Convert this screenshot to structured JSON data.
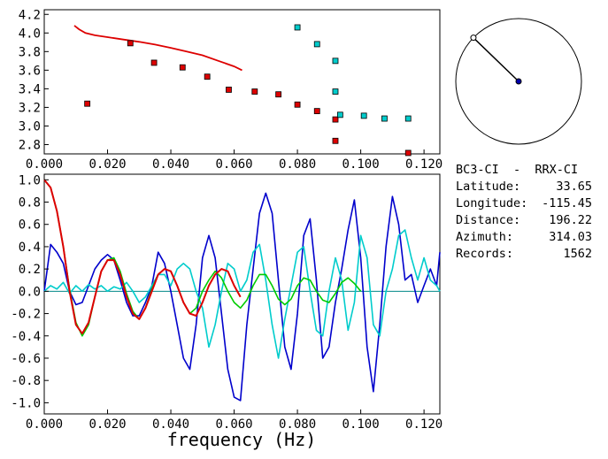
{
  "station": {
    "title": "BC3-CI  -  RRX-CI",
    "fields": [
      {
        "label": "Latitude:",
        "value": "33.65"
      },
      {
        "label": "Longitude:",
        "value": "-115.45"
      },
      {
        "label": "Distance:",
        "value": "196.22"
      },
      {
        "label": "Azimuth:",
        "value": "314.03"
      },
      {
        "label": "Records:",
        "value": "1562"
      }
    ]
  },
  "colors": {
    "red": "#dd0000",
    "cyan": "#00cccc",
    "blue": "#0000cc",
    "green": "#00cc00",
    "zeroline": "#008888",
    "marker_edge": "#000000"
  },
  "chart_data": [
    {
      "type": "scatter",
      "xlabel": "",
      "ylabel": "",
      "xlim": [
        0.0,
        0.125
      ],
      "ylim": [
        2.7,
        4.25
      ],
      "xticks": [
        "0.000",
        "0.020",
        "0.040",
        "0.060",
        "0.080",
        "0.100",
        "0.120"
      ],
      "yticks": [
        "2.8",
        "3.0",
        "3.2",
        "3.4",
        "3.6",
        "3.8",
        "4.0",
        "4.2"
      ],
      "grid": false,
      "series": [
        {
          "color": "red",
          "kind": "line",
          "x": [
            0.0095,
            0.011,
            0.013,
            0.016,
            0.02,
            0.025,
            0.03,
            0.035,
            0.04,
            0.045,
            0.05,
            0.055,
            0.06,
            0.0625
          ],
          "y": [
            4.08,
            4.04,
            4.0,
            3.975,
            3.955,
            3.93,
            3.905,
            3.875,
            3.84,
            3.8,
            3.76,
            3.7,
            3.64,
            3.6
          ]
        },
        {
          "color": "red",
          "kind": "markers",
          "x": [
            0.0136,
            0.0272,
            0.0347,
            0.0437,
            0.0515,
            0.0583,
            0.0665,
            0.074,
            0.08,
            0.0862,
            0.092,
            0.092,
            0.115
          ],
          "y": [
            3.24,
            3.89,
            3.68,
            3.63,
            3.53,
            3.39,
            3.37,
            3.34,
            3.23,
            3.16,
            3.07,
            2.84,
            2.71
          ]
        },
        {
          "color": "cyan",
          "kind": "markers",
          "x": [
            0.08,
            0.0862,
            0.092,
            0.092,
            0.0935,
            0.101,
            0.1075,
            0.115
          ],
          "y": [
            4.06,
            3.88,
            3.7,
            3.37,
            3.12,
            3.11,
            3.08,
            3.08
          ]
        }
      ]
    },
    {
      "type": "line",
      "xlabel": "frequency (Hz)",
      "ylabel": "",
      "xlim": [
        0.0,
        0.125
      ],
      "ylim": [
        -1.1,
        1.05
      ],
      "xticks": [
        "0.000",
        "0.020",
        "0.040",
        "0.060",
        "0.080",
        "0.100",
        "0.120"
      ],
      "yticks": [
        "-1.0",
        "-0.8",
        "-0.6",
        "-0.4",
        "-0.2",
        "0.0",
        "0.2",
        "0.4",
        "0.6",
        "0.8",
        "1.0"
      ],
      "grid": false,
      "series": [
        {
          "color": "blue",
          "x": [
            0.0,
            0.002,
            0.004,
            0.006,
            0.008,
            0.01,
            0.012,
            0.014,
            0.016,
            0.018,
            0.02,
            0.022,
            0.024,
            0.026,
            0.028,
            0.03,
            0.032,
            0.034,
            0.036,
            0.038,
            0.04,
            0.042,
            0.044,
            0.046,
            0.048,
            0.05,
            0.052,
            0.054,
            0.056,
            0.058,
            0.06,
            0.062,
            0.064,
            0.066,
            0.068,
            0.07,
            0.072,
            0.074,
            0.076,
            0.078,
            0.08,
            0.082,
            0.084,
            0.086,
            0.088,
            0.09,
            0.092,
            0.094,
            0.096,
            0.098,
            0.1,
            0.102,
            0.104,
            0.106,
            0.108,
            0.11,
            0.112,
            0.114,
            0.116,
            0.118,
            0.12,
            0.122,
            0.124,
            0.125
          ],
          "y": [
            0.0,
            0.42,
            0.35,
            0.25,
            0.0,
            -0.12,
            -0.1,
            0.05,
            0.2,
            0.28,
            0.33,
            0.28,
            0.1,
            -0.1,
            -0.22,
            -0.22,
            -0.1,
            0.05,
            0.35,
            0.25,
            0.0,
            -0.3,
            -0.6,
            -0.7,
            -0.3,
            0.3,
            0.5,
            0.3,
            -0.2,
            -0.7,
            -0.95,
            -0.98,
            -0.3,
            0.2,
            0.7,
            0.88,
            0.7,
            0.1,
            -0.5,
            -0.7,
            -0.2,
            0.5,
            0.65,
            0.1,
            -0.6,
            -0.5,
            -0.1,
            0.2,
            0.55,
            0.82,
            0.3,
            -0.5,
            -0.9,
            -0.3,
            0.4,
            0.85,
            0.6,
            0.1,
            0.15,
            -0.1,
            0.05,
            0.2,
            0.05,
            0.35
          ]
        },
        {
          "color": "cyan",
          "x": [
            0.0,
            0.002,
            0.004,
            0.006,
            0.008,
            0.01,
            0.012,
            0.014,
            0.016,
            0.018,
            0.02,
            0.022,
            0.024,
            0.026,
            0.028,
            0.03,
            0.032,
            0.034,
            0.036,
            0.038,
            0.04,
            0.042,
            0.044,
            0.046,
            0.048,
            0.05,
            0.052,
            0.054,
            0.056,
            0.058,
            0.06,
            0.062,
            0.064,
            0.066,
            0.068,
            0.07,
            0.072,
            0.074,
            0.076,
            0.078,
            0.08,
            0.082,
            0.084,
            0.086,
            0.088,
            0.09,
            0.092,
            0.094,
            0.096,
            0.098,
            0.1,
            0.102,
            0.104,
            0.106,
            0.108,
            0.11,
            0.112,
            0.114,
            0.116,
            0.118,
            0.12,
            0.122,
            0.124,
            0.125
          ],
          "y": [
            0.0,
            0.05,
            0.02,
            0.08,
            -0.02,
            0.05,
            0.0,
            0.06,
            0.02,
            0.05,
            0.0,
            0.04,
            0.02,
            0.08,
            0.0,
            -0.1,
            -0.05,
            0.05,
            0.15,
            0.15,
            0.05,
            0.2,
            0.25,
            0.2,
            0.0,
            -0.15,
            -0.5,
            -0.3,
            0.0,
            0.25,
            0.2,
            0.0,
            0.1,
            0.35,
            0.42,
            0.1,
            -0.3,
            -0.6,
            -0.25,
            0.05,
            0.35,
            0.4,
            0.0,
            -0.35,
            -0.4,
            0.0,
            0.3,
            0.1,
            -0.35,
            -0.1,
            0.5,
            0.3,
            -0.3,
            -0.4,
            0.0,
            0.2,
            0.5,
            0.55,
            0.3,
            0.1,
            0.3,
            0.1,
            0.05,
            0.0
          ]
        },
        {
          "color": "green",
          "x": [
            0.0,
            0.002,
            0.004,
            0.006,
            0.008,
            0.01,
            0.012,
            0.014,
            0.016,
            0.018,
            0.02,
            0.022,
            0.024,
            0.026,
            0.028,
            0.03,
            0.032,
            0.034,
            0.036,
            0.038,
            0.04,
            0.042,
            0.044,
            0.046,
            0.048,
            0.05,
            0.052,
            0.054,
            0.056,
            0.058,
            0.06,
            0.062,
            0.064,
            0.066,
            0.068,
            0.07,
            0.072,
            0.074,
            0.076,
            0.078,
            0.08,
            0.082,
            0.084,
            0.086,
            0.088,
            0.09,
            0.092,
            0.094,
            0.096,
            0.098,
            0.1
          ],
          "y": [
            1.0,
            0.93,
            0.72,
            0.4,
            0.02,
            -0.28,
            -0.4,
            -0.3,
            -0.05,
            0.18,
            0.28,
            0.3,
            0.18,
            -0.02,
            -0.18,
            -0.25,
            -0.15,
            0.02,
            0.15,
            0.2,
            0.18,
            0.05,
            -0.1,
            -0.2,
            -0.15,
            0.0,
            0.1,
            0.18,
            0.12,
            0.0,
            -0.1,
            -0.15,
            -0.08,
            0.05,
            0.15,
            0.15,
            0.05,
            -0.07,
            -0.12,
            -0.07,
            0.05,
            0.12,
            0.1,
            0.0,
            -0.08,
            -0.1,
            -0.02,
            0.08,
            0.12,
            0.07,
            0.0
          ]
        },
        {
          "color": "red",
          "x": [
            0.0,
            0.002,
            0.004,
            0.006,
            0.008,
            0.01,
            0.012,
            0.014,
            0.016,
            0.018,
            0.02,
            0.022,
            0.024,
            0.026,
            0.028,
            0.03,
            0.032,
            0.034,
            0.036,
            0.038,
            0.04,
            0.042,
            0.044,
            0.046,
            0.048,
            0.05,
            0.052,
            0.054,
            0.056,
            0.058,
            0.06,
            0.062
          ],
          "y": [
            1.0,
            0.93,
            0.72,
            0.4,
            0.0,
            -0.3,
            -0.38,
            -0.28,
            -0.05,
            0.18,
            0.28,
            0.28,
            0.15,
            -0.05,
            -0.2,
            -0.25,
            -0.15,
            0.0,
            0.15,
            0.2,
            0.18,
            0.05,
            -0.1,
            -0.2,
            -0.22,
            -0.1,
            0.05,
            0.15,
            0.2,
            0.18,
            0.05,
            -0.05
          ]
        }
      ]
    }
  ],
  "azimuth_dial": {
    "azimuth_deg": 314.03
  }
}
